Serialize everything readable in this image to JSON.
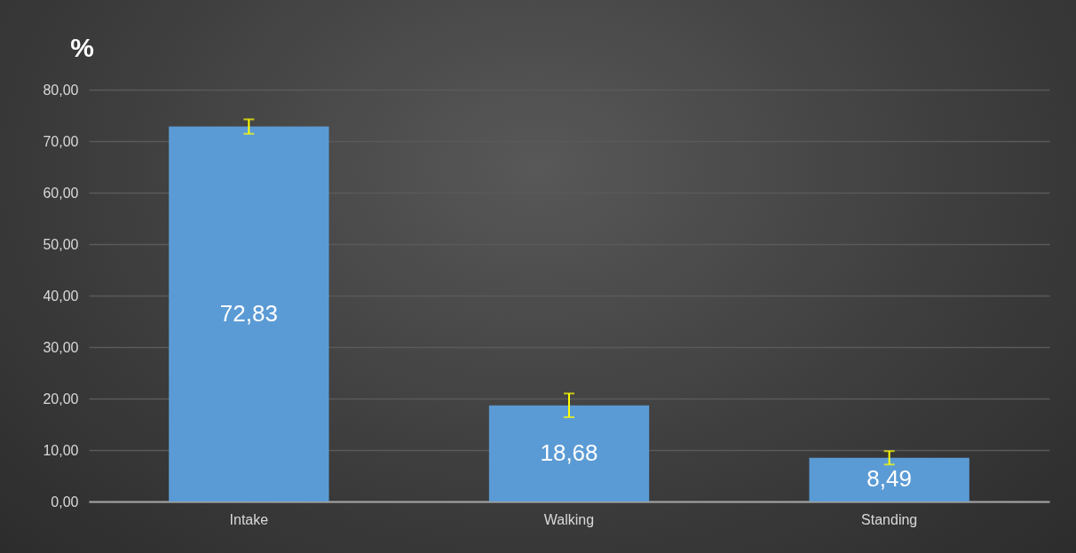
{
  "chart_data": {
    "type": "bar",
    "ylabel": "%",
    "categories": [
      "Intake",
      "Walking",
      "Standing"
    ],
    "values": [
      72.83,
      18.68,
      8.49
    ],
    "value_labels": [
      "72,83",
      "18,68",
      "8,49"
    ],
    "errors": [
      1.4,
      2.3,
      1.3
    ],
    "color": "#5b9bd5",
    "ylim": [
      0,
      80
    ],
    "yticks": [
      {
        "value": 0,
        "label": "0,00"
      },
      {
        "value": 10,
        "label": "10,00"
      },
      {
        "value": 20,
        "label": "20,00"
      },
      {
        "value": 30,
        "label": "30,00"
      },
      {
        "value": 40,
        "label": "40,00"
      },
      {
        "value": 50,
        "label": "50,00"
      },
      {
        "value": 60,
        "label": "60,00"
      },
      {
        "value": 70,
        "label": "70,00"
      },
      {
        "value": 80,
        "label": "80,00"
      }
    ],
    "grid": "y"
  }
}
